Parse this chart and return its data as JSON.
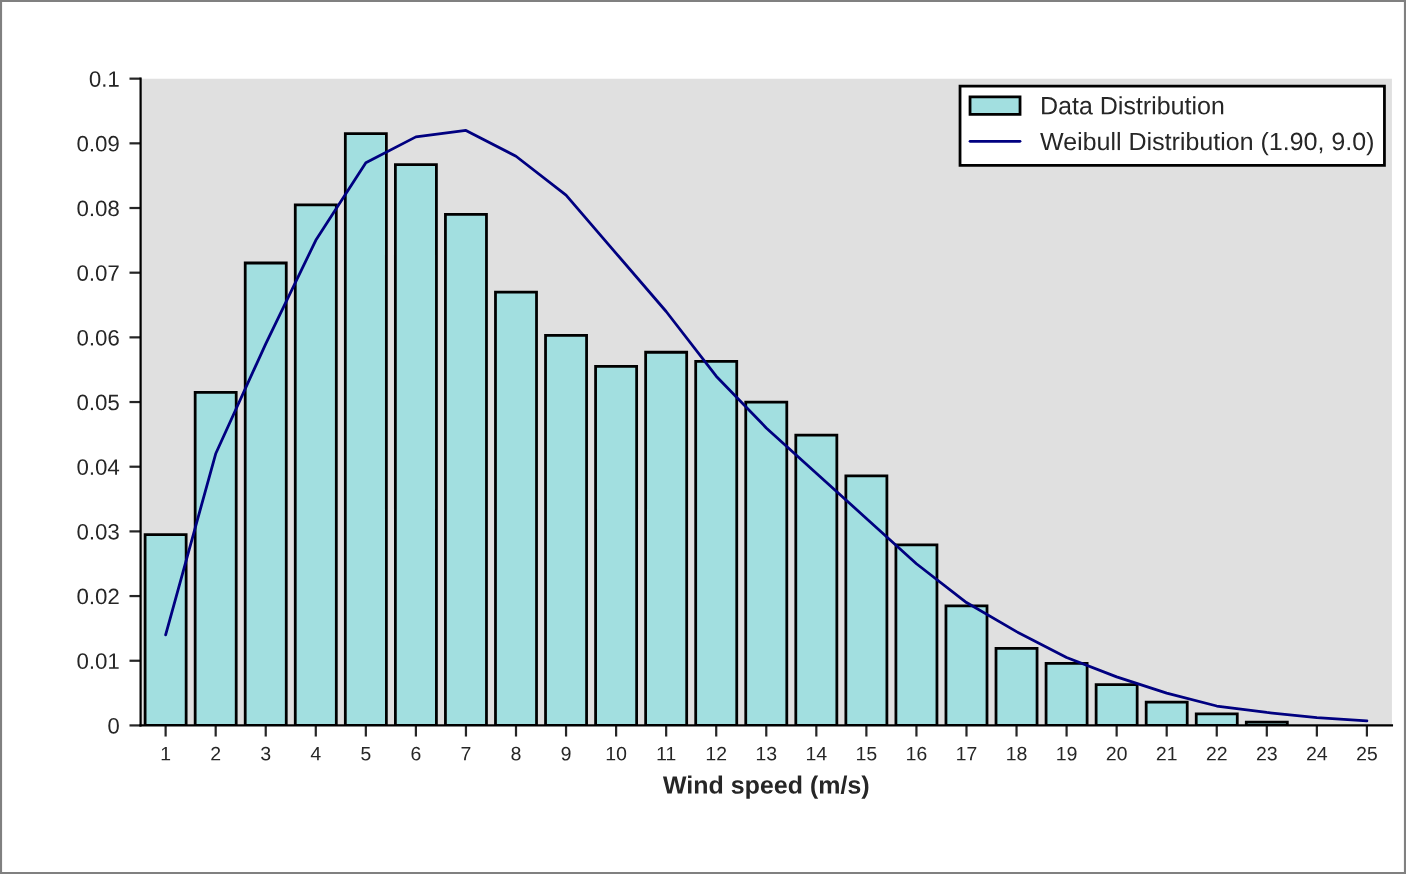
{
  "chart_data": {
    "type": "bar",
    "xlabel": "Wind speed (m/s)",
    "categories": [
      "1",
      "2",
      "3",
      "4",
      "5",
      "6",
      "7",
      "8",
      "9",
      "10",
      "11",
      "12",
      "13",
      "14",
      "15",
      "16",
      "17",
      "18",
      "19",
      "20",
      "21",
      "22",
      "23",
      "24",
      "25"
    ],
    "series": [
      {
        "name": "Data Distribution",
        "color": "#a2dfe0",
        "values": [
          0.0295,
          0.0515,
          0.0715,
          0.0805,
          0.0915,
          0.0867,
          0.079,
          0.067,
          0.0603,
          0.0555,
          0.0577,
          0.0563,
          0.05,
          0.0449,
          0.0386,
          0.0279,
          0.0185,
          0.0119,
          0.0096,
          0.0063,
          0.0036,
          0.0018,
          0.0005,
          null,
          null
        ]
      },
      {
        "name": "Weibull Distribution (1.90, 9.0)",
        "type": "line",
        "color": "#000080",
        "values": [
          0.014,
          0.042,
          0.059,
          0.075,
          0.087,
          0.091,
          0.092,
          0.088,
          0.082,
          0.073,
          0.064,
          0.054,
          0.046,
          0.039,
          0.032,
          0.025,
          0.019,
          0.0145,
          0.0105,
          0.0075,
          0.005,
          0.003,
          0.002,
          0.0012,
          0.0007
        ]
      }
    ],
    "ylim": [
      0,
      0.1
    ],
    "yticks": [
      0,
      0.01,
      0.02,
      0.03,
      0.04,
      0.05,
      0.06,
      0.07,
      0.08,
      0.09,
      0.1
    ],
    "grid": false,
    "legend": "top right"
  }
}
